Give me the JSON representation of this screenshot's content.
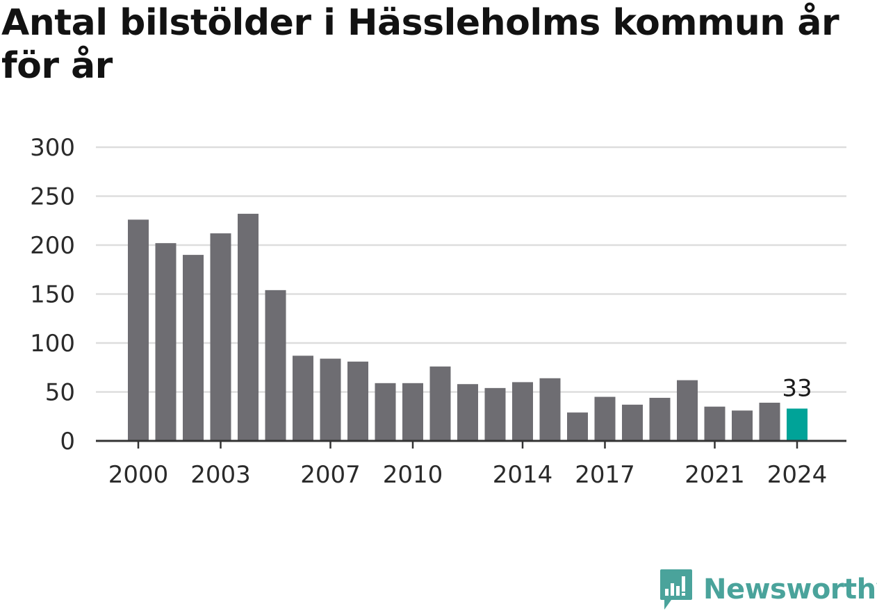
{
  "title": "Antal bilstölder i Hässleholms kommun år för år",
  "brand": {
    "name": "Newsworthy",
    "color": "#4aa39b"
  },
  "colors": {
    "bar": "#6e6d72",
    "highlight": "#00a398",
    "grid": "#dddddd",
    "axis": "#333333"
  },
  "chart_data": {
    "type": "bar",
    "title": "Antal bilstölder i Hässleholms kommun år för år",
    "xlabel": "",
    "ylabel": "",
    "ylim": [
      0,
      300
    ],
    "yticks": [
      "0",
      "50",
      "100",
      "150",
      "200",
      "250",
      "300"
    ],
    "categories": [
      "2000",
      "2001",
      "2002",
      "2003",
      "2004",
      "2005",
      "2006",
      "2007",
      "2008",
      "2009",
      "2010",
      "2011",
      "2012",
      "2013",
      "2014",
      "2015",
      "2016",
      "2017",
      "2018",
      "2019",
      "2020",
      "2021",
      "2022",
      "2023",
      "2024"
    ],
    "values": [
      226,
      202,
      190,
      212,
      232,
      154,
      87,
      84,
      81,
      59,
      59,
      76,
      58,
      54,
      60,
      64,
      29,
      45,
      37,
      44,
      62,
      35,
      31,
      39,
      33
    ],
    "xtick_labels": [
      "2000",
      "2003",
      "2007",
      "2010",
      "2014",
      "2017",
      "2021",
      "2024"
    ],
    "highlight_index": 24,
    "data_labels": [
      {
        "index": 24,
        "text": "33"
      }
    ],
    "grid": true,
    "legend": "none"
  }
}
